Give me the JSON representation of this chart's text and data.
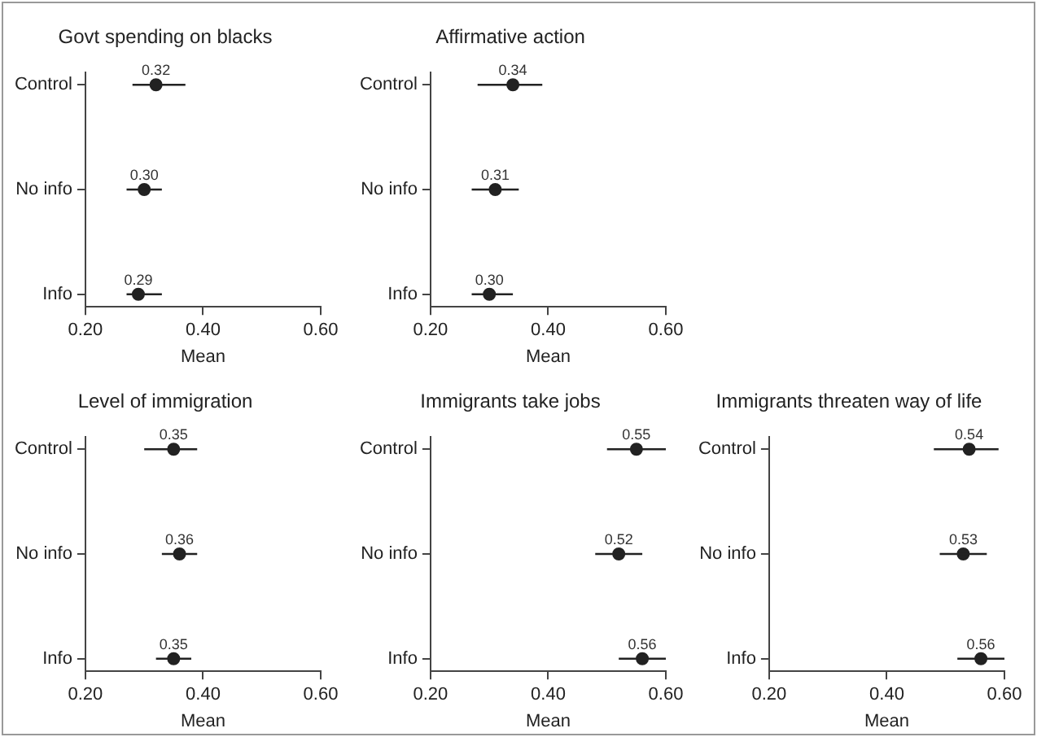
{
  "chart_data": [
    {
      "type": "scatter",
      "title": "Govt spending on blacks",
      "xlabel": "Mean",
      "orientation": "horizontal",
      "categories": [
        "Control",
        "No info",
        "Info"
      ],
      "values": [
        0.32,
        0.3,
        0.29
      ],
      "value_labels": [
        "0.32",
        "0.30",
        "0.29"
      ],
      "errors": [
        [
          0.28,
          0.37
        ],
        [
          0.27,
          0.33
        ],
        [
          0.27,
          0.33
        ]
      ],
      "color": "#222222",
      "marker": "circle",
      "xlim": [
        0.2,
        0.6
      ],
      "xticks": [
        {
          "value": 0.2,
          "label": "0.20"
        },
        {
          "value": 0.4,
          "label": "0.40"
        },
        {
          "value": 0.6,
          "label": "0.60"
        }
      ],
      "grid": false,
      "legend": false
    },
    {
      "type": "scatter",
      "title": "Affirmative action",
      "xlabel": "Mean",
      "orientation": "horizontal",
      "categories": [
        "Control",
        "No info",
        "Info"
      ],
      "values": [
        0.34,
        0.31,
        0.3
      ],
      "value_labels": [
        "0.34",
        "0.31",
        "0.30"
      ],
      "errors": [
        [
          0.28,
          0.39
        ],
        [
          0.27,
          0.35
        ],
        [
          0.27,
          0.34
        ]
      ],
      "color": "#222222",
      "marker": "circle",
      "xlim": [
        0.2,
        0.6
      ],
      "xticks": [
        {
          "value": 0.2,
          "label": "0.20"
        },
        {
          "value": 0.4,
          "label": "0.40"
        },
        {
          "value": 0.6,
          "label": "0.60"
        }
      ],
      "grid": false,
      "legend": false
    },
    {
      "type": "scatter",
      "title": "Level of immigration",
      "xlabel": "Mean",
      "orientation": "horizontal",
      "categories": [
        "Control",
        "No info",
        "Info"
      ],
      "values": [
        0.35,
        0.36,
        0.35
      ],
      "value_labels": [
        "0.35",
        "0.36",
        "0.35"
      ],
      "errors": [
        [
          0.3,
          0.39
        ],
        [
          0.33,
          0.39
        ],
        [
          0.32,
          0.38
        ]
      ],
      "color": "#222222",
      "marker": "circle",
      "xlim": [
        0.2,
        0.6
      ],
      "xticks": [
        {
          "value": 0.2,
          "label": "0.20"
        },
        {
          "value": 0.4,
          "label": "0.40"
        },
        {
          "value": 0.6,
          "label": "0.60"
        }
      ],
      "grid": false,
      "legend": false
    },
    {
      "type": "scatter",
      "title": "Immigrants take jobs",
      "xlabel": "Mean",
      "orientation": "horizontal",
      "categories": [
        "Control",
        "No info",
        "Info"
      ],
      "values": [
        0.55,
        0.52,
        0.56
      ],
      "value_labels": [
        "0.55",
        "0.52",
        "0.56"
      ],
      "errors": [
        [
          0.5,
          0.6
        ],
        [
          0.48,
          0.56
        ],
        [
          0.52,
          0.6
        ]
      ],
      "color": "#222222",
      "marker": "circle",
      "xlim": [
        0.2,
        0.6
      ],
      "xticks": [
        {
          "value": 0.2,
          "label": "0.20"
        },
        {
          "value": 0.4,
          "label": "0.40"
        },
        {
          "value": 0.6,
          "label": "0.60"
        }
      ],
      "grid": false,
      "legend": false
    },
    {
      "type": "scatter",
      "title": "Immigrants threaten way of life",
      "xlabel": "Mean",
      "orientation": "horizontal",
      "categories": [
        "Control",
        "No info",
        "Info"
      ],
      "values": [
        0.54,
        0.53,
        0.56
      ],
      "value_labels": [
        "0.54",
        "0.53",
        "0.56"
      ],
      "errors": [
        [
          0.48,
          0.59
        ],
        [
          0.49,
          0.57
        ],
        [
          0.52,
          0.6
        ]
      ],
      "color": "#222222",
      "marker": "circle",
      "xlim": [
        0.2,
        0.6
      ],
      "xticks": [
        {
          "value": 0.2,
          "label": "0.20"
        },
        {
          "value": 0.4,
          "label": "0.40"
        },
        {
          "value": 0.6,
          "label": "0.60"
        }
      ],
      "grid": false,
      "legend": false
    }
  ]
}
